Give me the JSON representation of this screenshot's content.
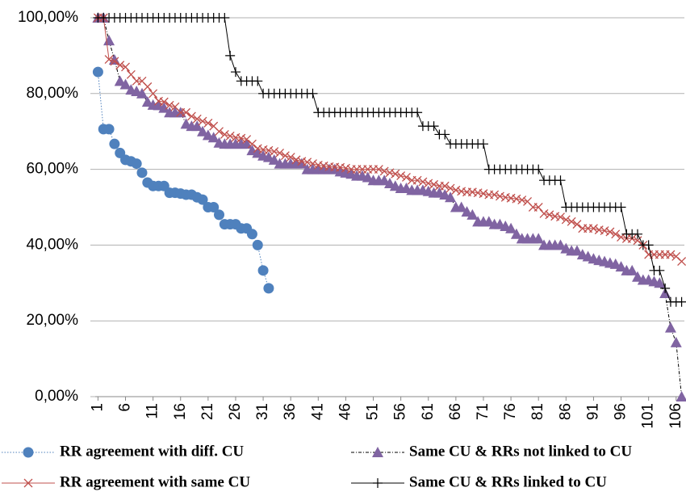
{
  "chart_data": {
    "type": "line",
    "categories": [
      "1",
      null,
      null,
      null,
      null,
      "6",
      null,
      null,
      null,
      null,
      "11",
      null,
      null,
      null,
      null,
      "16",
      null,
      null,
      null,
      null,
      "21",
      null,
      null,
      null,
      null,
      "26",
      null,
      null,
      null,
      null,
      "31",
      null,
      null,
      null,
      null,
      "36",
      null,
      null,
      null,
      null,
      "41",
      null,
      null,
      null,
      null,
      "46",
      null,
      null,
      null,
      null,
      "51",
      null,
      null,
      null,
      null,
      "56",
      null,
      null,
      null,
      null,
      "61",
      null,
      null,
      null,
      null,
      "66",
      null,
      null,
      null,
      null,
      "71",
      null,
      null,
      null,
      null,
      "76",
      null,
      null,
      null,
      null,
      "81",
      null,
      null,
      null,
      null,
      "86",
      null,
      null,
      null,
      null,
      "91",
      null,
      null,
      null,
      null,
      "96",
      null,
      null,
      null,
      null,
      "101",
      null,
      null,
      null,
      null,
      "106",
      null
    ],
    "ylim": [
      0,
      100
    ],
    "yticks": [
      {
        "value": 0,
        "label": "0,00%"
      },
      {
        "value": 20,
        "label": "20,00%"
      },
      {
        "value": 40,
        "label": "40,00%"
      },
      {
        "value": 60,
        "label": "60,00%"
      },
      {
        "value": 80,
        "label": "80,00%"
      },
      {
        "value": 100,
        "label": "100,00%"
      }
    ],
    "grid": true,
    "series": [
      {
        "name": "RR agreement with diff. CU",
        "color": "#4f81bd",
        "marker": "circle",
        "line_color": "#4f81bd",
        "line_style": "dotted",
        "values": [
          85.7,
          70.6,
          70.6,
          66.7,
          64.3,
          62.5,
          62.1,
          61.5,
          59.1,
          56.5,
          55.6,
          55.6,
          55.6,
          53.8,
          53.8,
          53.6,
          53.3,
          53.3,
          52.6,
          52.0,
          50.0,
          50.0,
          48.0,
          45.5,
          45.5,
          45.5,
          44.4,
          44.4,
          42.9,
          40.0,
          33.3,
          28.6,
          null,
          null,
          null,
          null,
          null,
          null,
          null,
          null,
          null,
          null,
          null,
          null,
          null,
          null,
          null,
          null,
          null,
          null,
          null,
          null,
          null,
          null,
          null,
          null,
          null,
          null,
          null,
          null,
          null,
          null,
          null,
          null,
          null,
          null,
          null,
          null,
          null,
          null,
          null,
          null,
          null,
          null,
          null,
          null,
          null,
          null,
          null,
          null,
          null,
          null,
          null,
          null,
          null,
          null,
          null,
          null,
          null,
          null,
          null,
          null,
          null,
          null,
          null,
          null,
          null,
          null,
          null,
          null,
          null,
          null,
          null,
          null,
          null,
          null,
          null
        ]
      },
      {
        "name": "Same CU & RRs not linked to CU",
        "color": "#8064a2",
        "marker": "triangle",
        "line_color": "#000000",
        "line_style": "dashdot",
        "values": [
          100,
          100,
          94,
          88.9,
          83.3,
          82.4,
          81,
          80.6,
          80,
          77.8,
          77,
          76.9,
          76.2,
          75,
          75,
          75,
          72,
          71.4,
          71.4,
          70,
          69,
          68.4,
          67,
          66.7,
          66.7,
          66.7,
          66.7,
          66.7,
          65,
          64.3,
          63.6,
          63.2,
          62.5,
          61.5,
          61.5,
          61.5,
          61.5,
          61.5,
          60,
          60,
          60,
          60,
          60,
          60,
          59.4,
          59.1,
          58.8,
          58.3,
          58.3,
          57.9,
          57.1,
          57.1,
          57.1,
          56.3,
          55.6,
          55,
          55,
          54.5,
          54.5,
          54.5,
          54.2,
          53.8,
          53.8,
          53.3,
          52.6,
          50,
          50,
          48.8,
          48,
          46.2,
          46.2,
          46.2,
          45.5,
          45.5,
          45,
          44.4,
          42.9,
          41.7,
          41.7,
          41.7,
          41.7,
          40,
          40,
          40,
          40,
          39.1,
          38.5,
          38.5,
          37.5,
          37,
          36.4,
          36,
          35.7,
          35.3,
          35,
          34.3,
          33.3,
          33.3,
          31.6,
          30.8,
          30.8,
          30.4,
          30,
          27.3,
          18.2,
          14.3,
          0
        ]
      },
      {
        "name": "RR agreement with same CU",
        "color": "#c0504d",
        "marker": "x",
        "line_color": "#c0504d",
        "line_style": "solid",
        "values": [
          100,
          100,
          89,
          88.5,
          87.5,
          87,
          85,
          83.3,
          83.3,
          81.8,
          80,
          78,
          77.8,
          76.9,
          76.5,
          75,
          75,
          74,
          73.3,
          72.7,
          72.2,
          71.4,
          70,
          69.2,
          68.8,
          68.4,
          68.2,
          67.9,
          66.7,
          65.5,
          65.2,
          65,
          64.7,
          64.3,
          63.6,
          63.2,
          62.5,
          62.1,
          61.9,
          61.5,
          61.1,
          60.9,
          60.7,
          60.6,
          60.5,
          60.3,
          60,
          60,
          60,
          60,
          60,
          60,
          59.5,
          59.1,
          58.8,
          58.3,
          57.9,
          57.1,
          57.1,
          56.7,
          56.3,
          56,
          55.6,
          55.6,
          55,
          54.5,
          54.2,
          54,
          54,
          53.8,
          53.6,
          53.3,
          53.3,
          52.9,
          52.6,
          52.4,
          52.2,
          51.9,
          51.5,
          50,
          50,
          48.3,
          48,
          47.6,
          47.4,
          46.7,
          46.2,
          45.5,
          44.4,
          44.4,
          44.4,
          44,
          43.8,
          43.5,
          42.9,
          42.1,
          41.7,
          41.7,
          41.2,
          40,
          37.5,
          37.5,
          37.5,
          37.5,
          37.5,
          37,
          35.7
        ]
      },
      {
        "name": "Same CU & RRs linked to CU",
        "color": "#000000",
        "marker": "plus",
        "line_color": "#000000",
        "line_style": "solid",
        "values": [
          100,
          100,
          100,
          100,
          100,
          100,
          100,
          100,
          100,
          100,
          100,
          100,
          100,
          100,
          100,
          100,
          100,
          100,
          100,
          100,
          100,
          100,
          100,
          100,
          90,
          85.7,
          83.3,
          83.3,
          83.3,
          83.3,
          80,
          80,
          80,
          80,
          80,
          80,
          80,
          80,
          80,
          80,
          75,
          75,
          75,
          75,
          75,
          75,
          75,
          75,
          75,
          75,
          75,
          75,
          75,
          75,
          75,
          75,
          75,
          75,
          75,
          71.4,
          71.4,
          71.4,
          69.2,
          69.2,
          66.7,
          66.7,
          66.7,
          66.7,
          66.7,
          66.7,
          66.7,
          60,
          60,
          60,
          60,
          60,
          60,
          60,
          60,
          60,
          60,
          57.1,
          57.1,
          57.1,
          57.1,
          50,
          50,
          50,
          50,
          50,
          50,
          50,
          50,
          50,
          50,
          50,
          42.9,
          42.9,
          42.9,
          40,
          40,
          33.3,
          33.3,
          28.6,
          25,
          25,
          25
        ]
      }
    ]
  }
}
